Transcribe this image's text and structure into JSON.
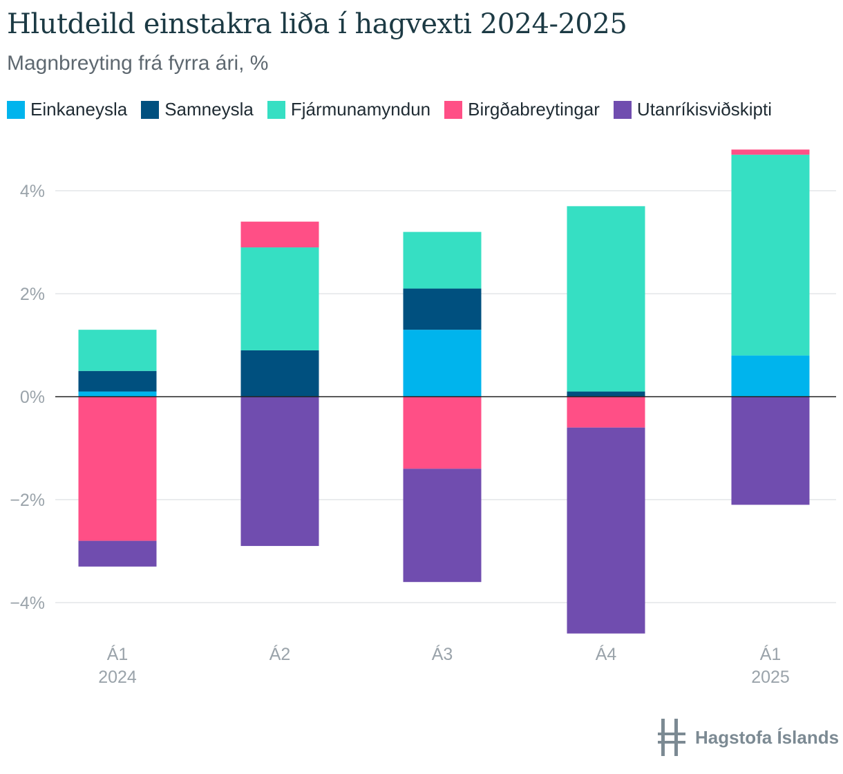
{
  "title": "Hlutdeild einstakra liða í hagvexti 2024-2025",
  "subtitle": "Magnbreyting frá fyrra ári, %",
  "logo_text": "Hagstofa Íslands",
  "chart_data": {
    "type": "bar",
    "stacked": true,
    "categories": [
      {
        "line1": "Á1",
        "line2": "2024"
      },
      {
        "line1": "Á2",
        "line2": ""
      },
      {
        "line1": "Á3",
        "line2": ""
      },
      {
        "line1": "Á4",
        "line2": ""
      },
      {
        "line1": "Á1",
        "line2": "2025"
      }
    ],
    "series": [
      {
        "name": "Einkaneysla",
        "color": "#00b4ed",
        "values": [
          0.1,
          0.0,
          1.3,
          0.0,
          0.8
        ]
      },
      {
        "name": "Samneysla",
        "color": "#00507f",
        "values": [
          0.4,
          0.9,
          0.8,
          0.1,
          0.0
        ]
      },
      {
        "name": "Fjármunamyndun",
        "color": "#36dfc3",
        "values": [
          0.8,
          2.0,
          1.1,
          3.6,
          3.9
        ]
      },
      {
        "name": "Birgðabreytingar",
        "color": "#ff4f86",
        "values": [
          -2.8,
          0.5,
          -1.4,
          -0.6,
          0.1
        ]
      },
      {
        "name": "Utanríkisviðskipti",
        "color": "#704daf",
        "values": [
          -0.5,
          -2.9,
          -2.2,
          -4.0,
          -2.1
        ]
      }
    ],
    "yticks": [
      -4,
      -2,
      0,
      2,
      4
    ],
    "ytick_labels": [
      "−4%",
      "−2%",
      "0%",
      "2%",
      "4%"
    ],
    "ylim": [
      -5,
      5
    ],
    "grid": true,
    "legend_position": "top-left"
  }
}
